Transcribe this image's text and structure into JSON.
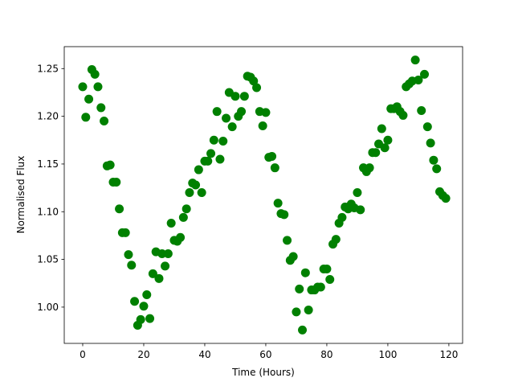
{
  "chart_data": {
    "type": "scatter",
    "x_label": "Time (Hours)",
    "y_label": "Normalised Flux",
    "x": [
      0,
      1,
      2,
      3,
      4,
      5,
      6,
      7,
      8,
      9,
      10,
      11,
      12,
      13,
      14,
      15,
      16,
      17,
      18,
      19,
      20,
      21,
      22,
      23,
      24,
      25,
      26,
      27,
      28,
      29,
      30,
      31,
      32,
      33,
      34,
      35,
      36,
      37,
      38,
      39,
      40,
      41,
      42,
      43,
      44,
      45,
      46,
      47,
      48,
      49,
      50,
      51,
      52,
      53,
      54,
      55,
      56,
      57,
      58,
      59,
      60,
      61,
      62,
      63,
      64,
      65,
      66,
      67,
      68,
      69,
      70,
      71,
      72,
      73,
      74,
      75,
      76,
      77,
      78,
      79,
      80,
      81,
      82,
      83,
      84,
      85,
      86,
      87,
      88,
      89,
      90,
      91,
      92,
      93,
      94,
      95,
      96,
      97,
      98,
      99,
      100,
      101,
      102,
      103,
      104,
      105,
      106,
      107,
      108,
      109,
      110,
      111,
      112,
      113,
      114,
      115,
      116,
      117,
      118,
      119
    ],
    "series": [
      {
        "color": "#008000",
        "values": [
          1.231,
          1.199,
          1.218,
          1.249,
          1.244,
          1.231,
          1.209,
          1.195,
          1.148,
          1.149,
          1.131,
          1.131,
          1.103,
          1.078,
          1.078,
          1.055,
          1.044,
          1.006,
          0.981,
          0.987,
          1.001,
          1.013,
          0.988,
          1.035,
          1.058,
          1.03,
          1.056,
          1.043,
          1.056,
          1.088,
          1.07,
          1.069,
          1.073,
          1.094,
          1.103,
          1.12,
          1.13,
          1.128,
          1.144,
          1.12,
          1.153,
          1.153,
          1.161,
          1.175,
          1.205,
          1.155,
          1.174,
          1.198,
          1.225,
          1.189,
          1.221,
          1.2,
          1.205,
          1.221,
          1.242,
          1.241,
          1.237,
          1.23,
          1.205,
          1.19,
          1.204,
          1.157,
          1.158,
          1.146,
          1.109,
          1.098,
          1.097,
          1.07,
          1.049,
          1.053,
          0.995,
          1.019,
          0.976,
          1.036,
          0.997,
          1.018,
          1.018,
          1.021,
          1.021,
          1.04,
          1.04,
          1.029,
          1.066,
          1.071,
          1.088,
          1.094,
          1.105,
          1.103,
          1.108,
          1.104,
          1.12,
          1.102,
          1.146,
          1.142,
          1.146,
          1.162,
          1.162,
          1.171,
          1.187,
          1.167,
          1.175,
          1.208,
          1.208,
          1.21,
          1.205,
          1.201,
          1.231,
          1.234,
          1.237,
          1.259,
          1.238,
          1.206,
          1.244,
          1.189,
          1.172,
          1.154,
          1.145,
          1.121,
          1.117,
          1.114
        ]
      }
    ],
    "xlim": [
      -6.05,
      124.5
    ],
    "ylim": [
      0.962,
      1.273
    ],
    "xticks": [
      0,
      20,
      40,
      60,
      80,
      100,
      120
    ],
    "yticks": [
      {
        "value": 1,
        "label": "1.00"
      },
      1.05,
      {
        "value": 1.1,
        "label": "1.10"
      },
      1.15,
      {
        "value": 1.2,
        "label": "1.20"
      },
      1.25
    ]
  }
}
